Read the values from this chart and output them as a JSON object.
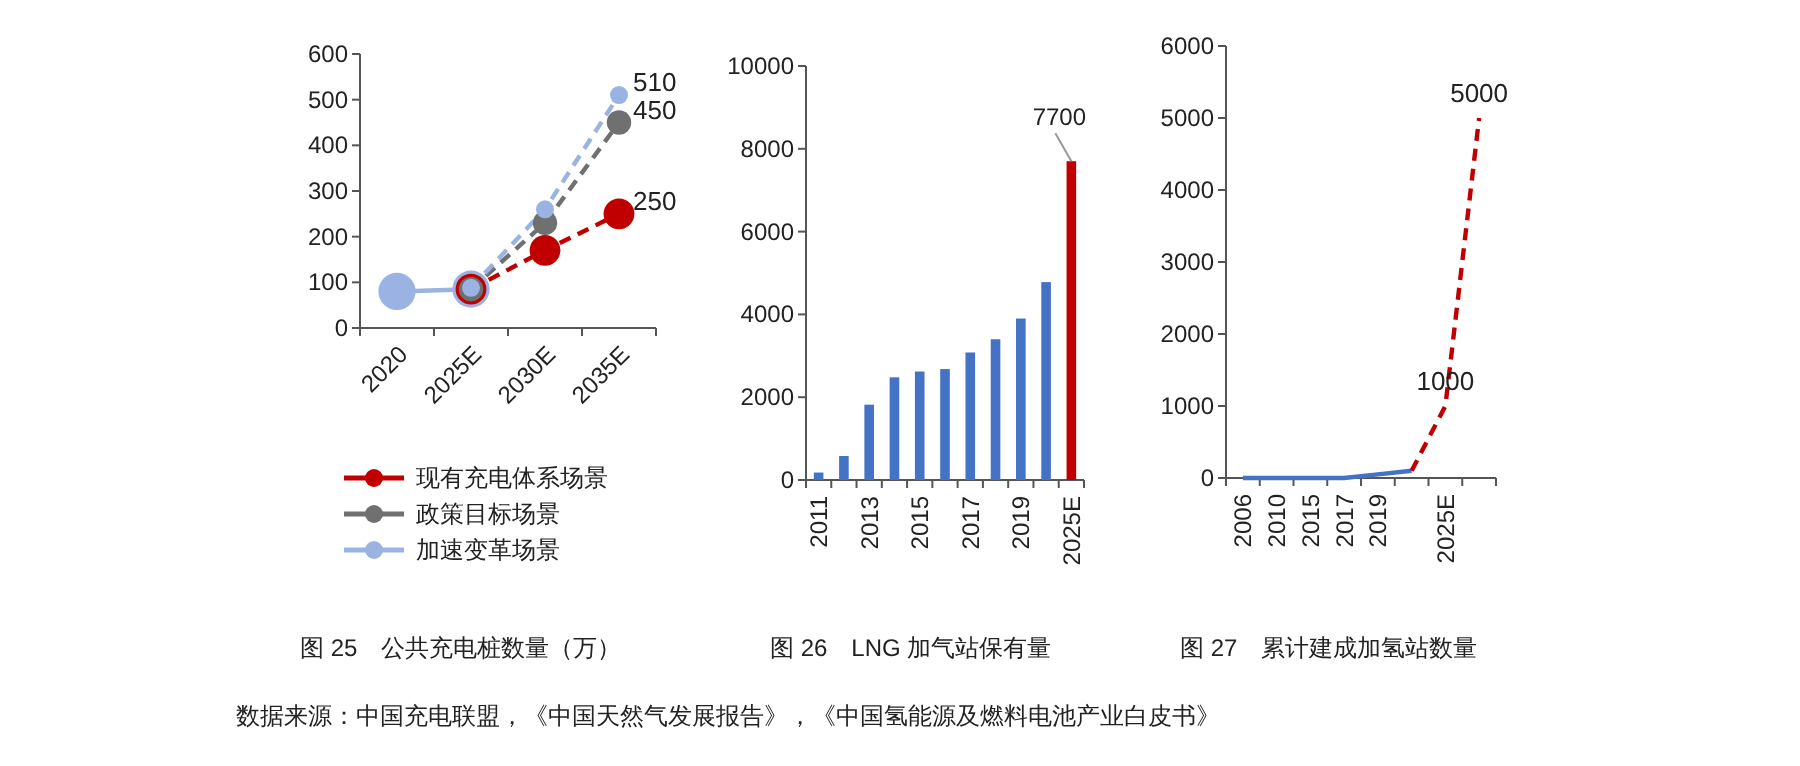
{
  "chart_data": [
    {
      "type": "line",
      "title": "图 25　公共充电桩数量（万）",
      "categories": [
        "2020",
        "2025E",
        "2030E",
        "2035E"
      ],
      "ylim": [
        0,
        600
      ],
      "yticks": [
        0,
        100,
        200,
        300,
        400,
        500,
        600
      ],
      "marker": "circle",
      "legend": "bottom",
      "series": [
        {
          "color": "#9bb3e3",
          "values": [
            80,
            85,
            null,
            null
          ],
          "line_style": "solid"
        },
        {
          "name": "现有充电体系场景",
          "color": "#c00000",
          "values": [
            null,
            85,
            170,
            250
          ],
          "line_style": "dashed",
          "value_labels": [
            null,
            null,
            null,
            "250"
          ]
        },
        {
          "name": "政策目标场景",
          "color": "#707070",
          "values": [
            null,
            85,
            230,
            450
          ],
          "line_style": "dashed",
          "value_labels": [
            null,
            null,
            null,
            "450"
          ]
        },
        {
          "name": "加速变革场景",
          "color": "#9bb3e3",
          "values": [
            null,
            88,
            260,
            510
          ],
          "line_style": "dashed",
          "value_labels": [
            null,
            null,
            null,
            "510"
          ]
        }
      ],
      "annotations": [
        "数据来源：中国充电联盟，《中国天然气发展报告》，《中国氢能源及燃料电池产业白皮书》"
      ]
    },
    {
      "type": "bar",
      "title": "图 26　LNG 加气站保有量",
      "categories": [
        "2011",
        null,
        "2013",
        null,
        "2015",
        null,
        "2017",
        null,
        "2019",
        null,
        "2025E"
      ],
      "ylim": [
        0,
        10000
      ],
      "yticks": [
        0,
        2000,
        4000,
        6000,
        8000,
        10000
      ],
      "values": [
        180,
        580,
        1820,
        2480,
        2620,
        2680,
        3080,
        3400,
        3900,
        4780,
        7700
      ],
      "colors": [
        "#4472c4",
        "#4472c4",
        "#4472c4",
        "#4472c4",
        "#4472c4",
        "#4472c4",
        "#4472c4",
        "#4472c4",
        "#4472c4",
        "#4472c4",
        "#c00000"
      ],
      "value_labels": [
        null,
        null,
        null,
        null,
        null,
        null,
        null,
        null,
        null,
        null,
        "7700"
      ]
    },
    {
      "type": "line",
      "title": "图 27　累计建成加氢站数量",
      "categories": [
        "2006",
        "2010",
        "2015",
        "2017",
        "2019",
        null,
        "2025E",
        null
      ],
      "ylim": [
        0,
        6000
      ],
      "yticks": [
        0,
        1000,
        2000,
        3000,
        4000,
        5000,
        6000
      ],
      "series": [
        {
          "color": "#4472c4",
          "values": [
            0,
            0,
            0,
            0,
            50,
            100,
            null,
            null
          ],
          "line_style": "solid"
        },
        {
          "color": "#c00000",
          "values": [
            null,
            null,
            null,
            null,
            null,
            100,
            1000,
            5000
          ],
          "line_style": "dashed",
          "value_labels": [
            null,
            null,
            null,
            null,
            null,
            null,
            "1000",
            "5000"
          ]
        }
      ]
    }
  ]
}
